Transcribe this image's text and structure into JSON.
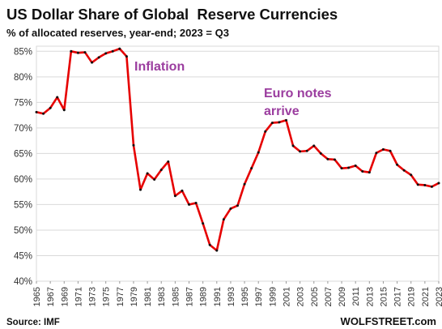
{
  "chart_data": {
    "type": "line",
    "title": "US Dollar Share of Global  Reserve Currencies",
    "subtitle": "% of allocated reserves, year-end; 2023 = Q3",
    "source": "Source: IMF",
    "brand": "WOLFSTREET.com",
    "annotations": [
      {
        "lines": [
          "Inflation"
        ],
        "color": "#9b3d9f"
      },
      {
        "lines": [
          "Euro notes",
          "arrive"
        ],
        "color": "#9b3d9f"
      }
    ],
    "ylim": [
      40,
      86
    ],
    "yticks": [
      40,
      45,
      50,
      55,
      60,
      65,
      70,
      75,
      80,
      85
    ],
    "ytick_labels": [
      "40%",
      "45%",
      "50%",
      "55%",
      "60%",
      "65%",
      "70%",
      "75%",
      "80%",
      "85%"
    ],
    "xlim": [
      1965,
      2023
    ],
    "xtick_labels": [
      "1965",
      "1967",
      "1969",
      "1971",
      "1973",
      "1975",
      "1977",
      "1979",
      "1981",
      "1983",
      "1985",
      "1987",
      "1989",
      "1991",
      "1993",
      "1995",
      "1997",
      "1999",
      "2001",
      "2003",
      "2005",
      "2007",
      "2009",
      "2011",
      "2013",
      "2015",
      "2017",
      "2019",
      "2021",
      "2023"
    ],
    "grid": true,
    "line_color": "#e60000",
    "marker_color": "#111111",
    "series": [
      {
        "x": [
          1965,
          1966,
          1967,
          1968,
          1969,
          1970,
          1971,
          1972,
          1973,
          1974,
          1975,
          1976,
          1977,
          1978,
          1979,
          1980,
          1981,
          1982,
          1983,
          1984,
          1985,
          1986,
          1987,
          1988,
          1989,
          1990,
          1991,
          1992,
          1993,
          1994,
          1995,
          1996,
          1997,
          1998,
          1999,
          2000,
          2001,
          2002,
          2003,
          2004,
          2005,
          2006,
          2007,
          2008,
          2009,
          2010,
          2011,
          2012,
          2013,
          2014,
          2015,
          2016,
          2017,
          2018,
          2019,
          2020,
          2021,
          2022,
          2023
        ],
        "values": [
          73.1,
          72.8,
          73.9,
          76.0,
          73.5,
          85.0,
          84.7,
          84.8,
          82.8,
          83.8,
          84.6,
          85.0,
          85.5,
          84.0,
          66.6,
          57.9,
          61.1,
          59.9,
          61.8,
          63.4,
          56.7,
          57.7,
          55.0,
          55.3,
          51.3,
          47.1,
          46.0,
          52.1,
          54.2,
          54.8,
          59.0,
          62.1,
          65.2,
          69.3,
          71.0,
          71.1,
          71.5,
          66.5,
          65.4,
          65.5,
          66.5,
          65.0,
          63.9,
          63.8,
          62.1,
          62.2,
          62.6,
          61.5,
          61.3,
          65.1,
          65.8,
          65.5,
          62.8,
          61.7,
          60.8,
          58.9,
          58.8,
          58.5,
          59.2
        ]
      }
    ]
  }
}
